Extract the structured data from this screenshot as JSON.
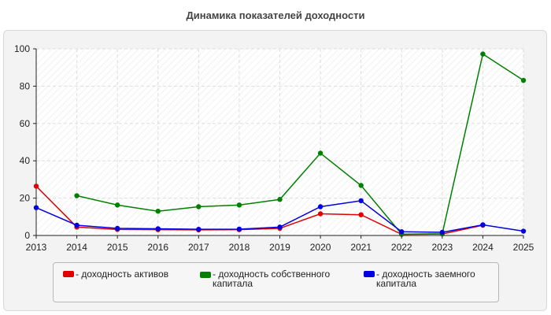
{
  "chart_data": {
    "type": "line",
    "title": "Динамика показателей доходности",
    "x": [
      "2013",
      "2014",
      "2015",
      "2016",
      "2017",
      "2018",
      "2019",
      "2020",
      "2021",
      "2022",
      "2023",
      "2024",
      "2025"
    ],
    "ylim": [
      0,
      100
    ],
    "yticks": [
      "0",
      "20",
      "40",
      "60",
      "80",
      "100"
    ],
    "grid": true,
    "legend_position": "bottom",
    "series": [
      {
        "name": "- доходность активов",
        "color": "#e00000",
        "values": [
          26.4,
          4.5,
          3.2,
          3.1,
          3.0,
          3.1,
          3.8,
          11.6,
          11.1,
          0.6,
          0.8,
          5.5,
          null
        ]
      },
      {
        "name": "- доходность собственного капитала",
        "color": "#008000",
        "values": [
          null,
          21.3,
          16.3,
          13.0,
          15.4,
          16.3,
          19.3,
          44.1,
          26.8,
          0.7,
          0.9,
          97.2,
          83.1
        ]
      },
      {
        "name": "- доходность заемного капитала",
        "color": "#0000e0",
        "values": [
          14.9,
          5.5,
          3.8,
          3.6,
          3.3,
          3.4,
          4.5,
          15.4,
          18.6,
          2.0,
          1.7,
          5.7,
          2.3
        ]
      }
    ]
  }
}
